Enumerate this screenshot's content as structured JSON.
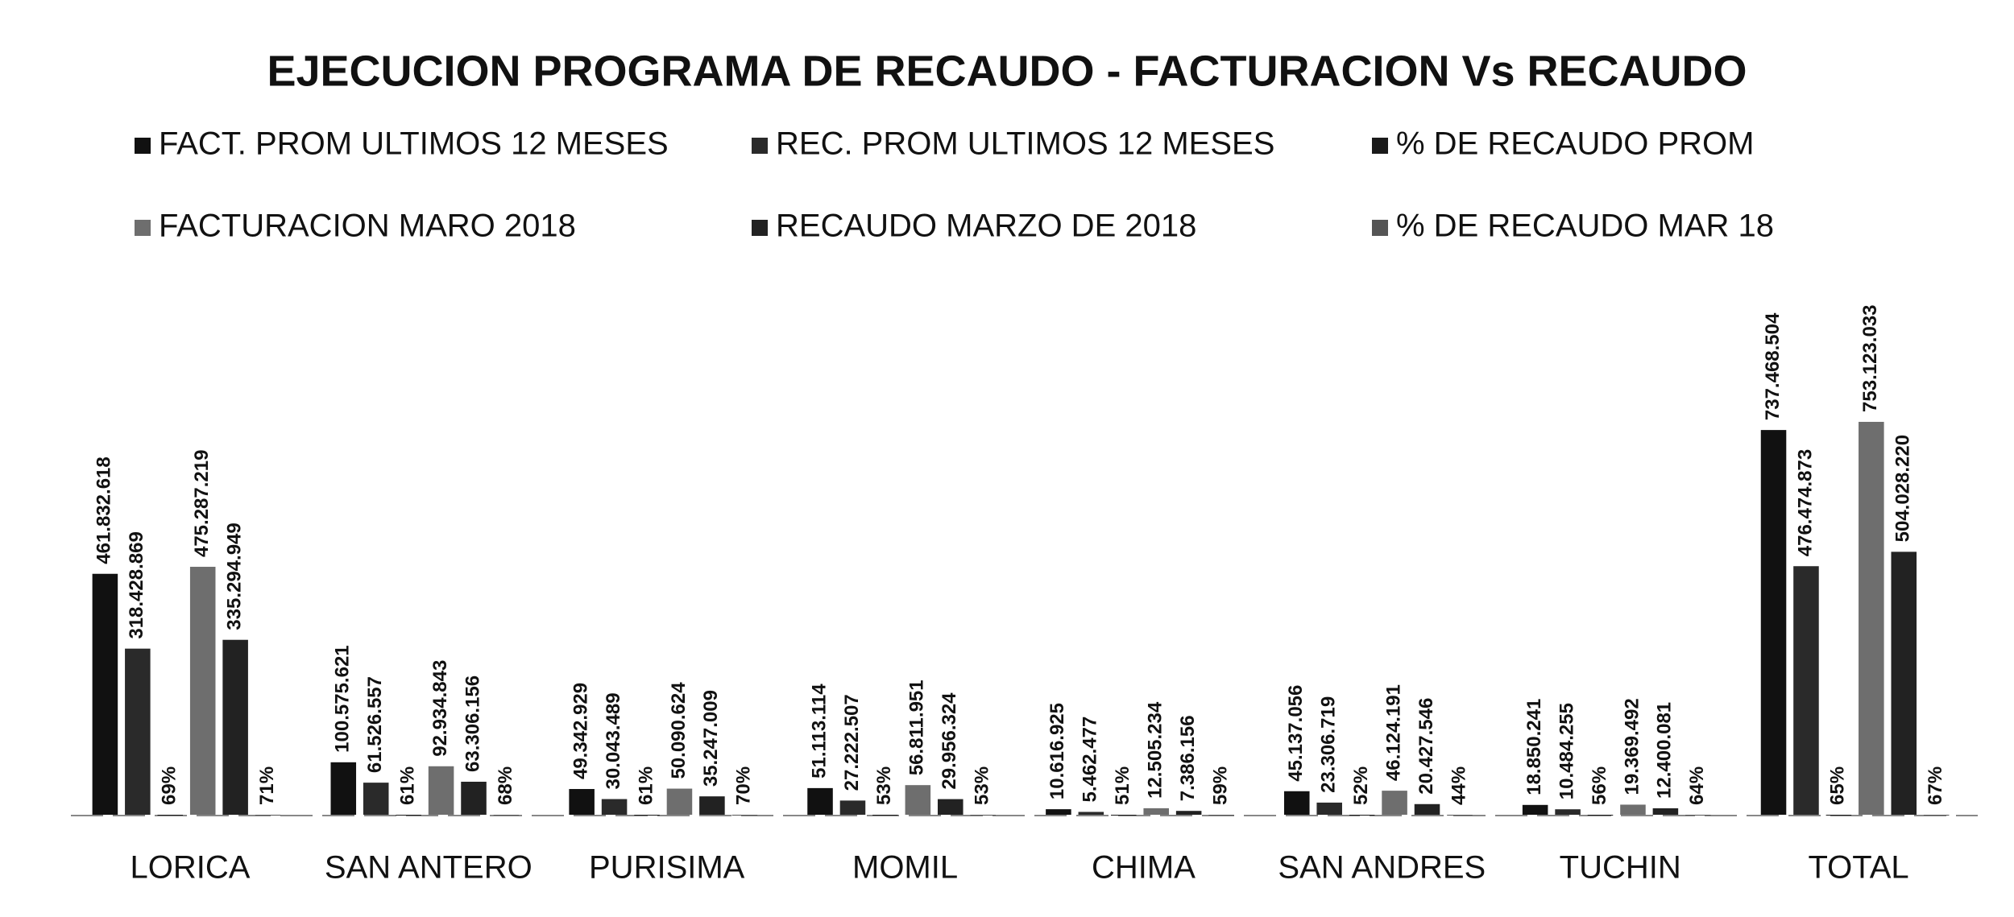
{
  "chart_data": {
    "type": "bar",
    "title": "EJECUCION PROGRAMA DE RECAUDO - FACTURACION Vs RECAUDO",
    "categories": [
      "LORICA",
      "SAN ANTERO",
      "PURISIMA",
      "MOMIL",
      "CHIMA",
      "SAN ANDRES",
      "TUCHIN",
      "TOTAL"
    ],
    "ylim": [
      0,
      1000000000
    ],
    "series": [
      {
        "name": "FACT. PROM ULTIMOS 12 MESES",
        "color": "#111111",
        "values": [
          461832618,
          100575621,
          49342929,
          51113114,
          10616925,
          45137056,
          18850241,
          737468504
        ],
        "value_labels": [
          "461.832.618",
          "100.575.621",
          "49.342.929",
          "51.113.114",
          "10.616.925",
          "45.137.056",
          "18.850.241",
          "737.468.504"
        ]
      },
      {
        "name": "REC. PROM ULTIMOS 12 MESES",
        "color": "#2a2a2a",
        "values": [
          318428869,
          61526557,
          30043489,
          27222507,
          5462477,
          23306719,
          10484255,
          476474873
        ],
        "value_labels": [
          "318.428.869",
          "61.526.557",
          "30.043.489",
          "27.222.507",
          "5.462.477",
          "23.306.719",
          "10.484.255",
          "476.474.873"
        ]
      },
      {
        "name": "% DE RECAUDO PROM",
        "color": "#1a1a1a",
        "values": [
          69,
          61,
          61,
          53,
          51,
          52,
          56,
          65
        ],
        "value_labels": [
          "69%",
          "61%",
          "61%",
          "53%",
          "51%",
          "52%",
          "56%",
          "65%"
        ]
      },
      {
        "name": "FACTURACION MARO 2018",
        "color": "#6e6e6e",
        "values": [
          475287219,
          92934843,
          50090624,
          56811951,
          12505234,
          46124191,
          19369492,
          753123033
        ],
        "value_labels": [
          "475.287.219",
          "92.934.843",
          "50.090.624",
          "56.811.951",
          "12.505.234",
          "46.124.191",
          "19.369.492",
          "753.123.033"
        ]
      },
      {
        "name": "RECAUDO MARZO DE 2018",
        "color": "#222222",
        "values": [
          335294949,
          63306156,
          35247009,
          29956324,
          7386156,
          20427546,
          12400081,
          504028220
        ],
        "value_labels": [
          "335.294.949",
          "63.306.156",
          "35.247.009",
          "29.956.324",
          "7.386.156",
          "20.427.546",
          "12.400.081",
          "504.028.220"
        ]
      },
      {
        "name": "% DE RECAUDO MAR 18",
        "color": "#555555",
        "values": [
          71,
          68,
          70,
          53,
          59,
          44,
          64,
          67
        ],
        "value_labels": [
          "71%",
          "68%",
          "70%",
          "53%",
          "59%",
          "44%",
          "64%",
          "67%"
        ]
      }
    ]
  }
}
